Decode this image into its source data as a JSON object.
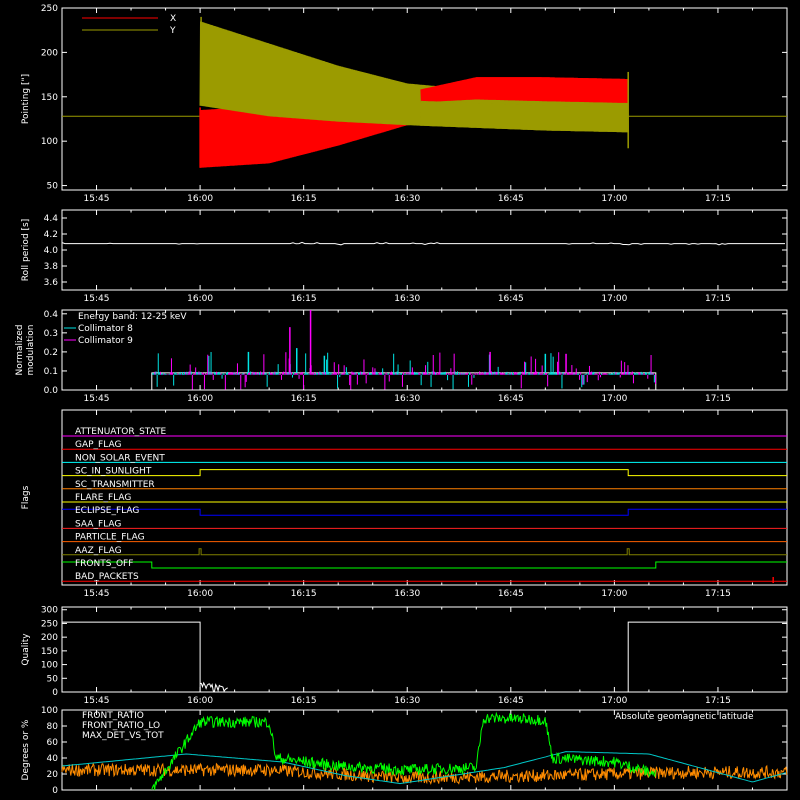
{
  "colors": {
    "background": "#000000",
    "axes": "#ffffff",
    "x_series": "#ff0000",
    "y_series": "#9b9b00",
    "collimator_8": "#00e5e5",
    "collimator_9": "#ff00ff",
    "front_ratio": "#00ff00",
    "front_ratio_2": "#b2ff00",
    "max_det": "#ff8c00",
    "geomag": "#00c8c8"
  },
  "time_ticks": [
    "15:45",
    "16:00",
    "16:15",
    "16:30",
    "16:45",
    "17:00",
    "17:15"
  ],
  "chart_data": [
    {
      "id": "pointing",
      "type": "line",
      "ylabel": "Pointing [\"]",
      "ylim": [
        45,
        250
      ],
      "yticks": [
        "50",
        "100",
        "150",
        "200",
        "250"
      ],
      "legend": [
        "X",
        "Y"
      ],
      "legend_placement": "top-left",
      "series": [
        {
          "name": "X",
          "flat_value": 128,
          "active_start": "16:00",
          "active_end": "17:02",
          "envelope_x": [
            "16:00",
            "16:10",
            "16:20",
            "16:30",
            "16:40",
            "16:50",
            "17:02"
          ],
          "envelope_low": [
            70,
            75,
            95,
            118,
            122,
            120,
            118
          ],
          "envelope_high": [
            135,
            140,
            145,
            155,
            172,
            172,
            170
          ]
        },
        {
          "name": "Y",
          "flat_value": 128,
          "active_start": "16:00",
          "active_end": "17:02",
          "envelope_x": [
            "16:00",
            "16:10",
            "16:20",
            "16:30",
            "16:40",
            "16:50",
            "17:02"
          ],
          "envelope_low": [
            140,
            128,
            122,
            118,
            115,
            112,
            110
          ],
          "envelope_high": [
            235,
            210,
            185,
            165,
            158,
            156,
            155
          ]
        }
      ]
    },
    {
      "id": "roll_period",
      "type": "line",
      "ylabel": "Roll period [s]",
      "ylim": [
        3.5,
        4.5
      ],
      "yticks": [
        "3.6",
        "3.8",
        "4.0",
        "4.2",
        "4.4"
      ],
      "series": [
        {
          "value": 4.08
        }
      ]
    },
    {
      "id": "modulation",
      "type": "bar",
      "ylabel": "Normalized modulation",
      "ylim": [
        0.0,
        0.42
      ],
      "yticks": [
        "0.0",
        "0.1",
        "0.2",
        "0.3",
        "0.4"
      ],
      "annotation": "Energy band: 12-25 keV",
      "legend": [
        "Collimator 8",
        "Collimator 9"
      ],
      "legend_placement": "top-left",
      "active_start": "15:53",
      "active_end": "17:06",
      "baseline": 0.09
    },
    {
      "id": "flags",
      "type": "line",
      "ylabel": "Flags",
      "flags": [
        {
          "name": "ATTENUATOR_STATE",
          "color": "#ff00ff"
        },
        {
          "name": "GAP_FLAG",
          "color": "#ff0000"
        },
        {
          "name": "NON_SOLAR_EVENT",
          "color": "#00ffff"
        },
        {
          "name": "SC_IN_SUNLIGHT",
          "color": "#ffff00"
        },
        {
          "name": "SC_TRANSMITTER",
          "color": "#ff8000"
        },
        {
          "name": "FLARE_FLAG",
          "color": "#ffff00"
        },
        {
          "name": "ECLIPSE_FLAG",
          "color": "#0000ff"
        },
        {
          "name": "SAA_FLAG",
          "color": "#ff2020"
        },
        {
          "name": "PARTICLE_FLAG",
          "color": "#ff6000"
        },
        {
          "name": "AAZ_FLAG",
          "color": "#808000"
        },
        {
          "name": "FRONTS_OFF",
          "color": "#00ff00"
        },
        {
          "name": "BAD_PACKETS",
          "color": "#ff0000"
        }
      ]
    },
    {
      "id": "quality",
      "type": "line",
      "ylabel": "Quality",
      "ylim": [
        0,
        310
      ],
      "yticks": [
        "0",
        "50",
        "100",
        "150",
        "200",
        "250",
        "300"
      ],
      "series": [
        {
          "segments": [
            [
              "15:40",
              "16:00",
              255
            ],
            [
              "16:00",
              "17:02",
              0
            ],
            [
              "17:02",
              "17:25",
              255
            ]
          ]
        }
      ]
    },
    {
      "id": "ratios",
      "type": "line",
      "ylabel": "Degrees or %",
      "ylim": [
        0,
        100
      ],
      "yticks": [
        "0",
        "20",
        "40",
        "60",
        "80",
        "100"
      ],
      "legend": [
        "FRONT_RATIO",
        "FRONT_RATIO_LO",
        "MAX_DET_VS_TOT"
      ],
      "legend_placement": "top-left",
      "annotation": "Absolute geomagnetic latitude",
      "series": [
        {
          "name": "FRONT_RATIO",
          "x": [
            "15:53",
            "16:00",
            "16:10",
            "16:11",
            "16:20",
            "16:30",
            "16:40",
            "16:41",
            "16:50",
            "16:51",
            "17:00",
            "17:06"
          ],
          "y": [
            0,
            85,
            85,
            40,
            30,
            25,
            28,
            90,
            88,
            40,
            35,
            20
          ]
        },
        {
          "name": "MAX_DET_VS_TOT",
          "x": [
            "15:40",
            "16:10",
            "16:30",
            "16:50",
            "17:10",
            "17:25"
          ],
          "y": [
            25,
            25,
            15,
            18,
            22,
            22
          ]
        },
        {
          "name": "Absolute geomagnetic latitude",
          "x": [
            "15:40",
            "15:58",
            "16:12",
            "16:21",
            "16:29",
            "16:44",
            "16:53",
            "17:05",
            "17:20",
            "17:25"
          ],
          "y": [
            30,
            45,
            35,
            18,
            8,
            28,
            48,
            45,
            10,
            22
          ]
        }
      ]
    }
  ]
}
